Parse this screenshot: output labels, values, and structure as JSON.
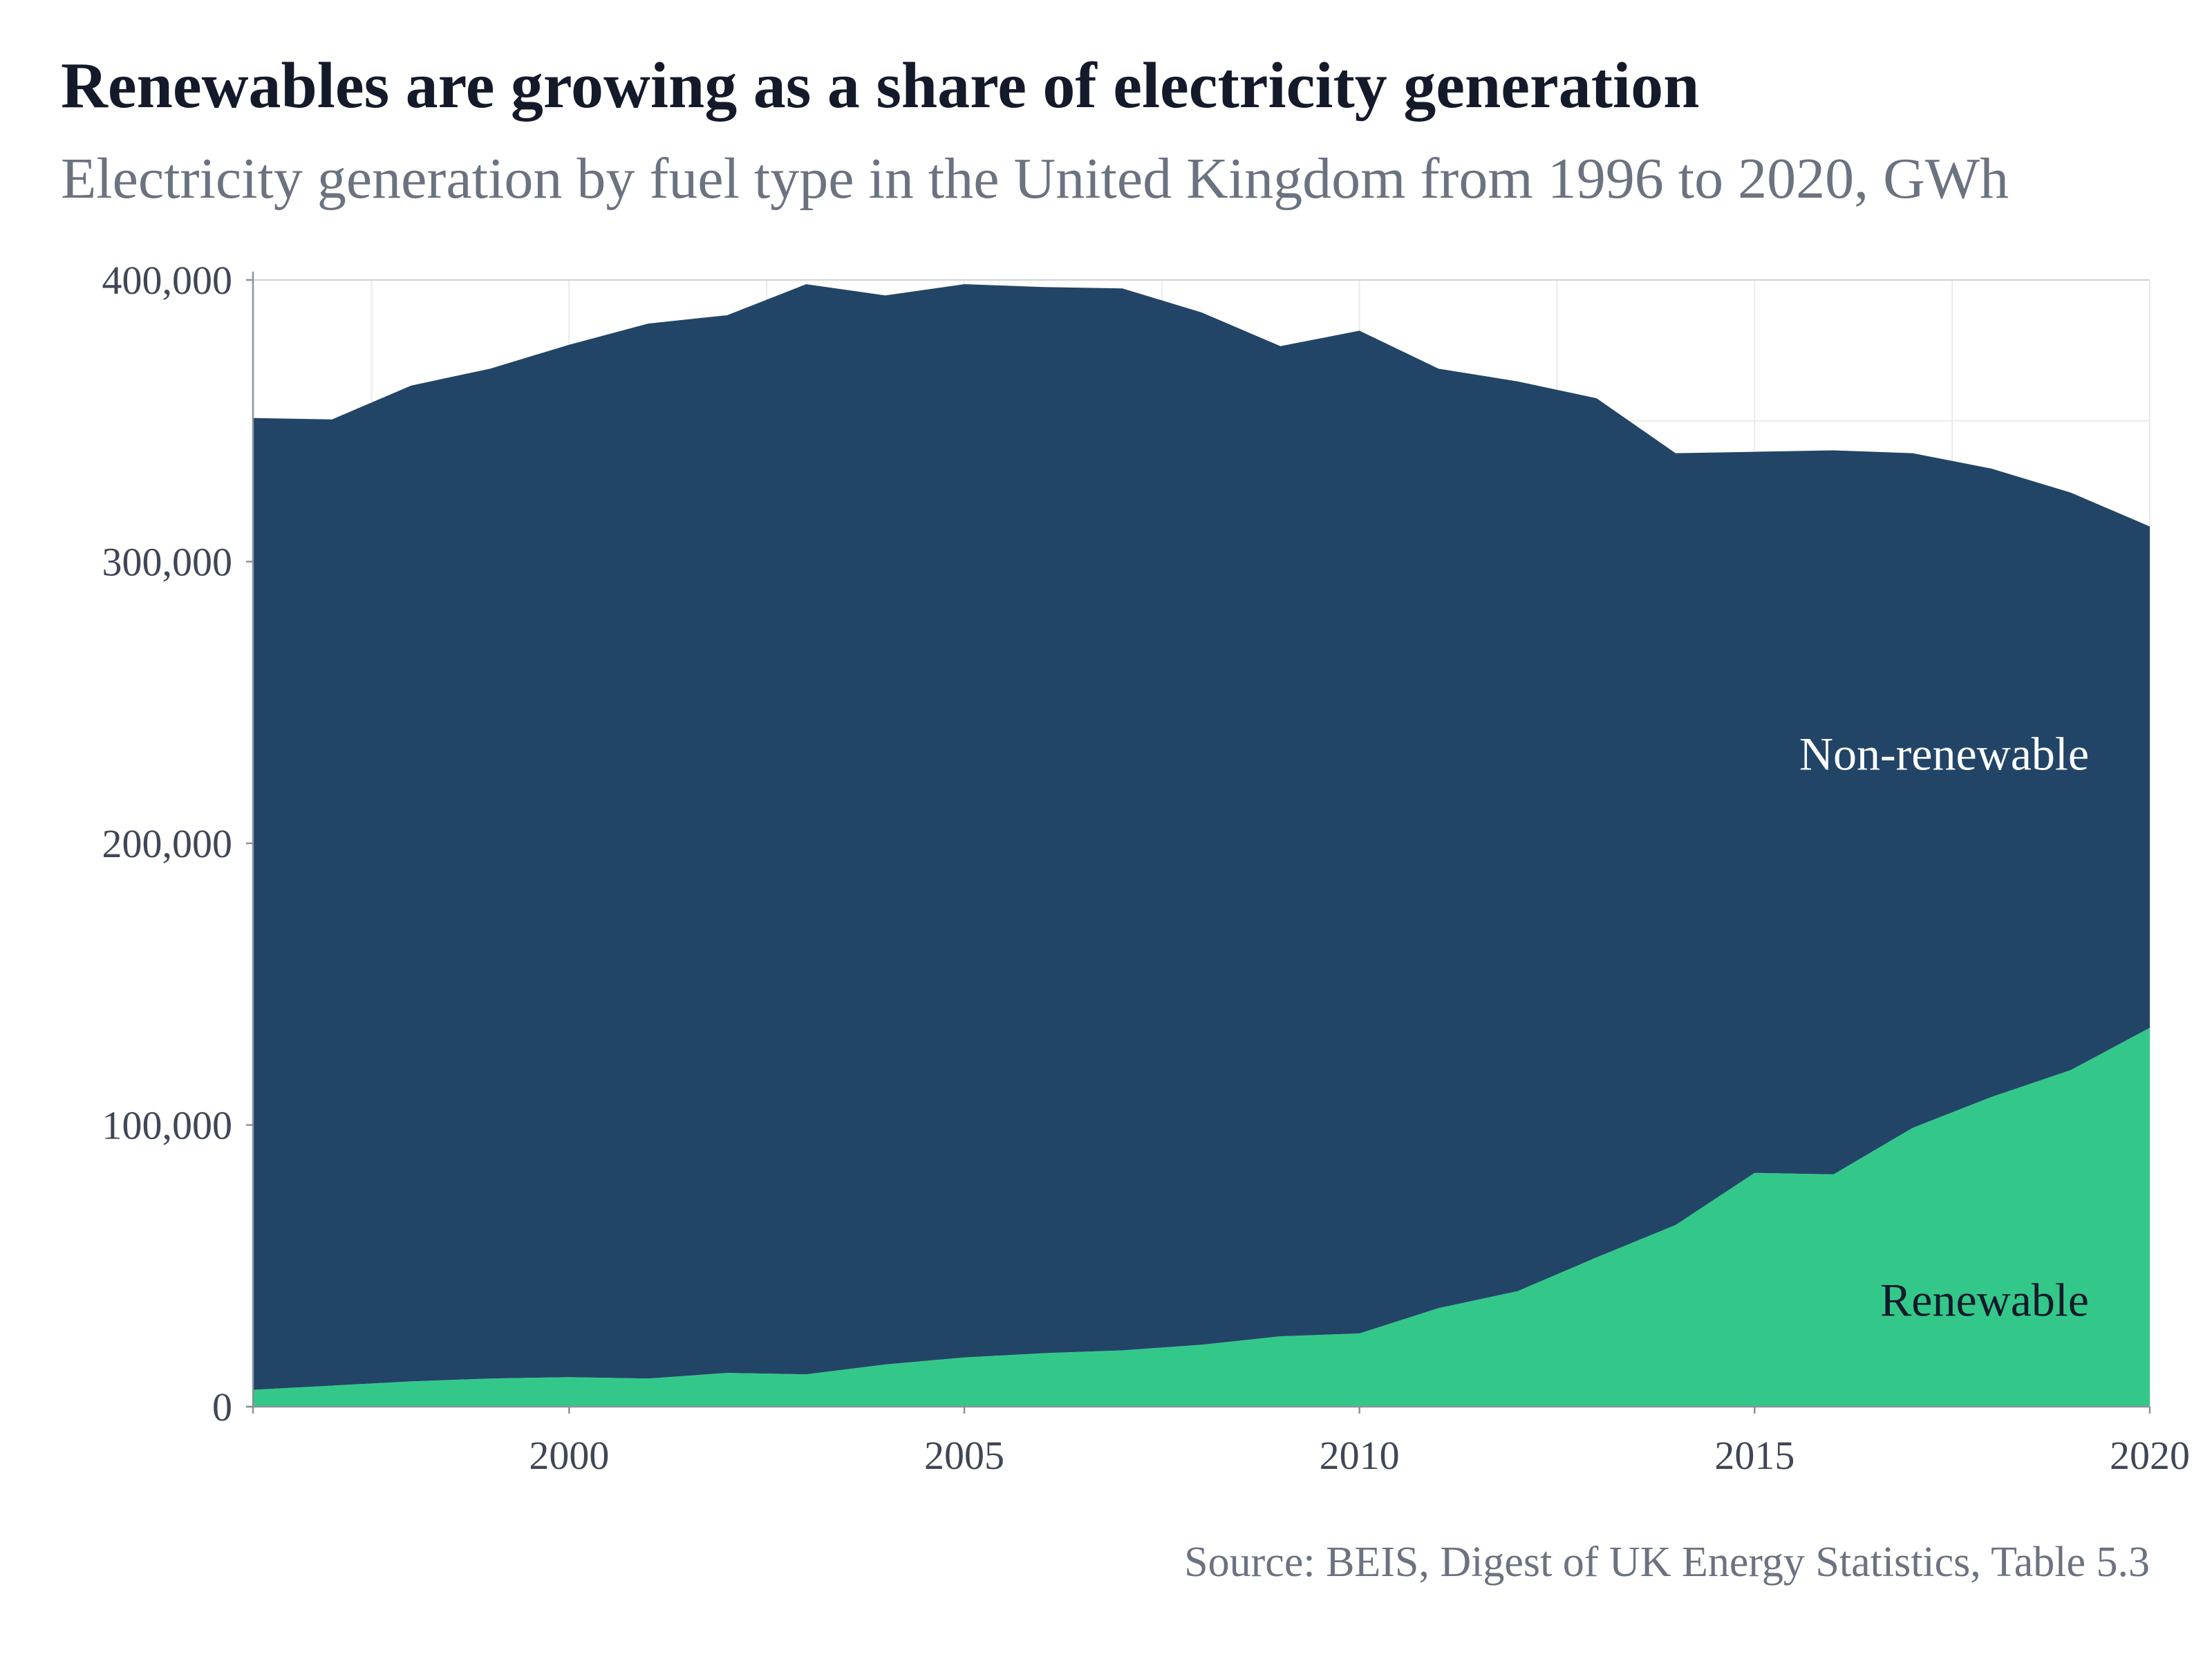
{
  "chart_data": {
    "type": "area",
    "stacked": true,
    "title": "Renewables are growing as a share of electricity generation",
    "subtitle": "Electricity generation by fuel type in the United Kingdom from 1996 to 2020, GWh",
    "source": "Source: BEIS, Digest of UK Energy Statistics, Table 5.3",
    "xlabel": "",
    "ylabel": "",
    "xlim": [
      1996,
      2020
    ],
    "ylim": [
      0,
      400000
    ],
    "x_ticks": [
      2000,
      2005,
      2010,
      2015,
      2020
    ],
    "y_ticks": [
      0,
      100000,
      200000,
      300000,
      400000
    ],
    "y_tick_labels": [
      "0",
      "100,000",
      "200,000",
      "300,000",
      "400,000"
    ],
    "grid": true,
    "x": [
      1996,
      1997,
      1998,
      1999,
      2000,
      2001,
      2002,
      2003,
      2004,
      2005,
      2006,
      2007,
      2008,
      2009,
      2010,
      2011,
      2012,
      2013,
      2014,
      2015,
      2016,
      2017,
      2018,
      2019,
      2020
    ],
    "series": [
      {
        "name": "Renewable",
        "color": "#33c88a",
        "label_color": "#141a2a",
        "values": [
          6000,
          7500,
          9000,
          10000,
          10500,
          10000,
          12000,
          11500,
          15000,
          17500,
          19000,
          20000,
          22000,
          25000,
          26000,
          35000,
          41000,
          53000,
          64500,
          83000,
          82500,
          99000,
          110000,
          119500,
          134500
        ]
      },
      {
        "name": "Non-renewable",
        "color": "#224567",
        "label_color": "#ffffff",
        "values": [
          345000,
          343000,
          353500,
          358500,
          366500,
          374500,
          375500,
          387000,
          379500,
          381000,
          378500,
          377000,
          366500,
          351500,
          356000,
          333500,
          323000,
          305000,
          274000,
          256000,
          257000,
          239500,
          223000,
          205000,
          178000
        ]
      }
    ]
  }
}
